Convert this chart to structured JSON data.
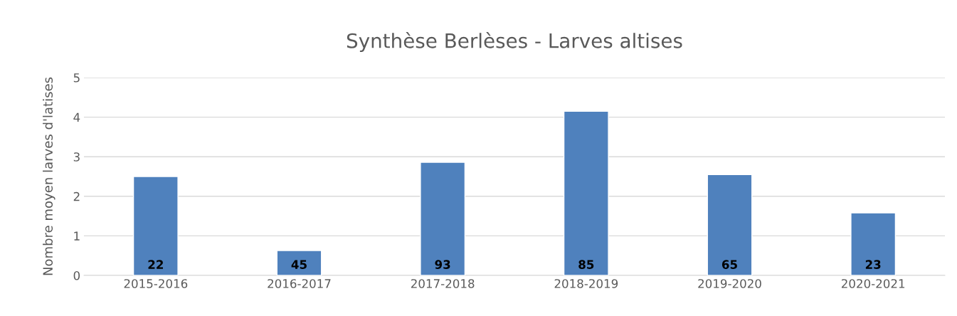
{
  "chart_data": {
    "type": "bar",
    "title": "Synthèse Berlèses - Larves altises",
    "ylabel": "Nombre moyen larves d'latises",
    "categories": [
      "2015-2016",
      "2016-2017",
      "2017-2018",
      "2018-2019",
      "2019-2020",
      "2020-2021"
    ],
    "values": [
      2.5,
      0.63,
      2.86,
      4.15,
      2.55,
      1.58
    ],
    "annotations": [
      "22",
      "45",
      "93",
      "85",
      "65",
      "23"
    ],
    "color": "#4f81bd",
    "ylim": [
      0,
      5
    ],
    "yticks": [
      0,
      1,
      2,
      3,
      4,
      5
    ],
    "grid": "y",
    "legend": false
  }
}
